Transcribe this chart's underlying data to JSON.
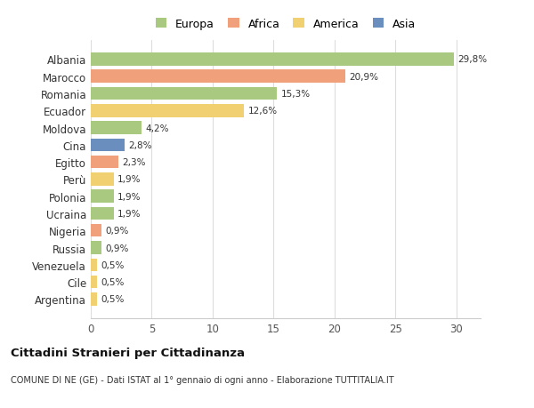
{
  "countries": [
    "Albania",
    "Marocco",
    "Romania",
    "Ecuador",
    "Moldova",
    "Cina",
    "Egitto",
    "Perù",
    "Polonia",
    "Ucraina",
    "Nigeria",
    "Russia",
    "Venezuela",
    "Cile",
    "Argentina"
  ],
  "values": [
    29.8,
    20.9,
    15.3,
    12.6,
    4.2,
    2.8,
    2.3,
    1.9,
    1.9,
    1.9,
    0.9,
    0.9,
    0.5,
    0.5,
    0.5
  ],
  "labels": [
    "29,8%",
    "20,9%",
    "15,3%",
    "12,6%",
    "4,2%",
    "2,8%",
    "2,3%",
    "1,9%",
    "1,9%",
    "1,9%",
    "0,9%",
    "0,9%",
    "0,5%",
    "0,5%",
    "0,5%"
  ],
  "bar_colors": [
    "#a8c97f",
    "#f0a07a",
    "#a8c97f",
    "#f0d070",
    "#a8c97f",
    "#6a8fbf",
    "#f0a07a",
    "#f0d070",
    "#a8c97f",
    "#a8c97f",
    "#f0a07a",
    "#a8c97f",
    "#f0d070",
    "#f0d070",
    "#f0d070"
  ],
  "legend_labels": [
    "Europa",
    "Africa",
    "America",
    "Asia"
  ],
  "legend_colors": [
    "#a8c97f",
    "#f0a07a",
    "#f0d070",
    "#6a8fbf"
  ],
  "title": "Cittadini Stranieri per Cittadinanza",
  "subtitle": "COMUNE DI NE (GE) - Dati ISTAT al 1° gennaio di ogni anno - Elaborazione TUTTITALIA.IT",
  "xlim": [
    0,
    32
  ],
  "xticks": [
    0,
    5,
    10,
    15,
    20,
    25,
    30
  ],
  "background_color": "#ffffff",
  "grid_color": "#dddddd"
}
